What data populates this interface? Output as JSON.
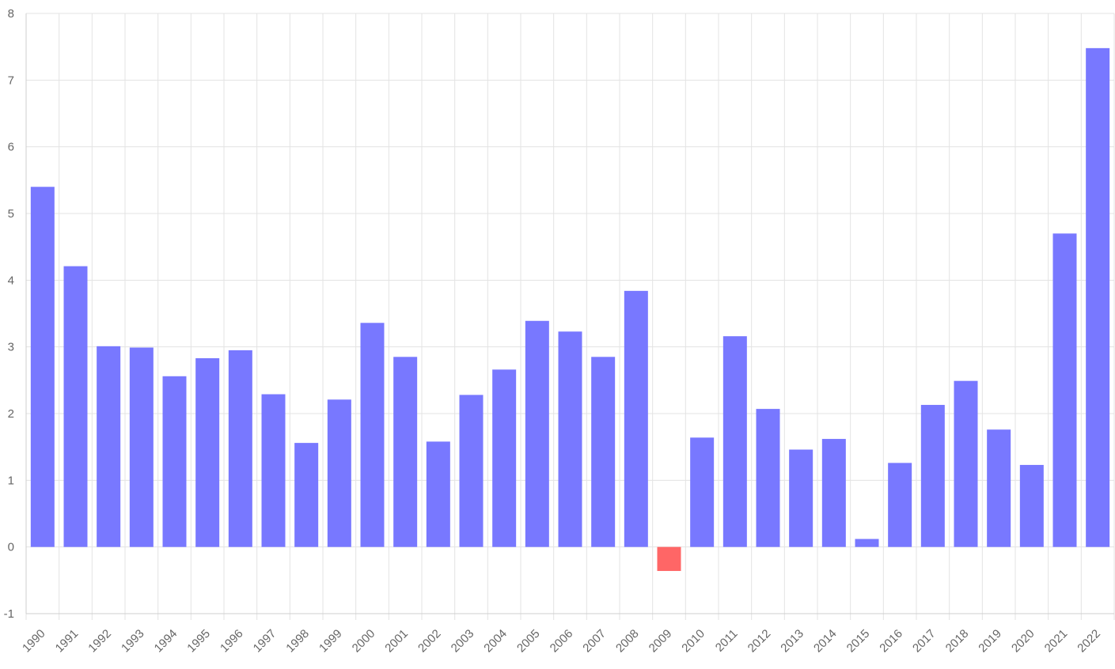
{
  "chart_data": {
    "type": "bar",
    "title": "",
    "xlabel": "",
    "ylabel": "",
    "categories": [
      "1990",
      "1991",
      "1992",
      "1993",
      "1994",
      "1995",
      "1996",
      "1997",
      "1998",
      "1999",
      "2000",
      "2001",
      "2002",
      "2003",
      "2004",
      "2005",
      "2006",
      "2007",
      "2008",
      "2009",
      "2010",
      "2011",
      "2012",
      "2013",
      "2014",
      "2015",
      "2016",
      "2017",
      "2018",
      "2019",
      "2020",
      "2021",
      "2022"
    ],
    "values": [
      5.4,
      4.21,
      3.01,
      2.99,
      2.56,
      2.83,
      2.95,
      2.29,
      1.56,
      2.21,
      3.36,
      2.85,
      1.58,
      2.28,
      2.66,
      3.39,
      3.23,
      2.85,
      3.84,
      -0.36,
      1.64,
      3.16,
      2.07,
      1.46,
      1.62,
      0.12,
      1.26,
      2.13,
      2.49,
      1.76,
      1.23,
      4.7,
      7.48
    ],
    "ylim": [
      -1,
      8
    ],
    "yticks": [
      -1,
      0,
      1,
      2,
      3,
      4,
      5,
      6,
      7,
      8
    ],
    "grid": true,
    "legend": "none",
    "colors": {
      "positive": "#7878ff",
      "negative": "#ff6666"
    }
  }
}
